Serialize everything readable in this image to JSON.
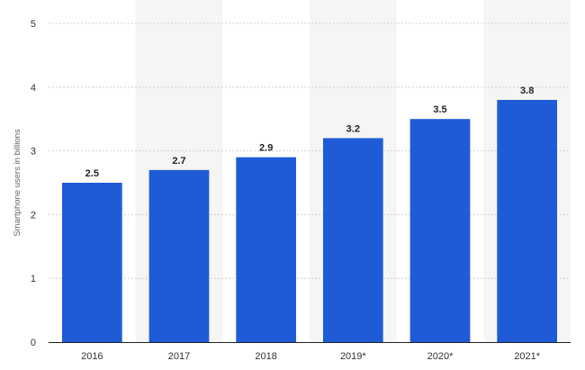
{
  "chart_data": {
    "type": "bar",
    "title": "",
    "xlabel": "",
    "ylabel": "Smartphone users in billions",
    "categories": [
      "2016",
      "2017",
      "2018",
      "2019*",
      "2020*",
      "2021*"
    ],
    "values": [
      2.5,
      2.7,
      2.9,
      3.2,
      3.5,
      3.8
    ],
    "data_labels": [
      "2.5",
      "2.7",
      "2.9",
      "3.2",
      "3.5",
      "3.8"
    ],
    "ylim": [
      0,
      5
    ],
    "yticks": [
      "0",
      "1",
      "2",
      "3",
      "4",
      "5"
    ],
    "grid": true,
    "legend": "none",
    "colors": {
      "bar": "#1f5bd6",
      "alternate_band": "#f5f5f5",
      "gridline": "#cfcfcf",
      "axis": "#222222"
    }
  }
}
